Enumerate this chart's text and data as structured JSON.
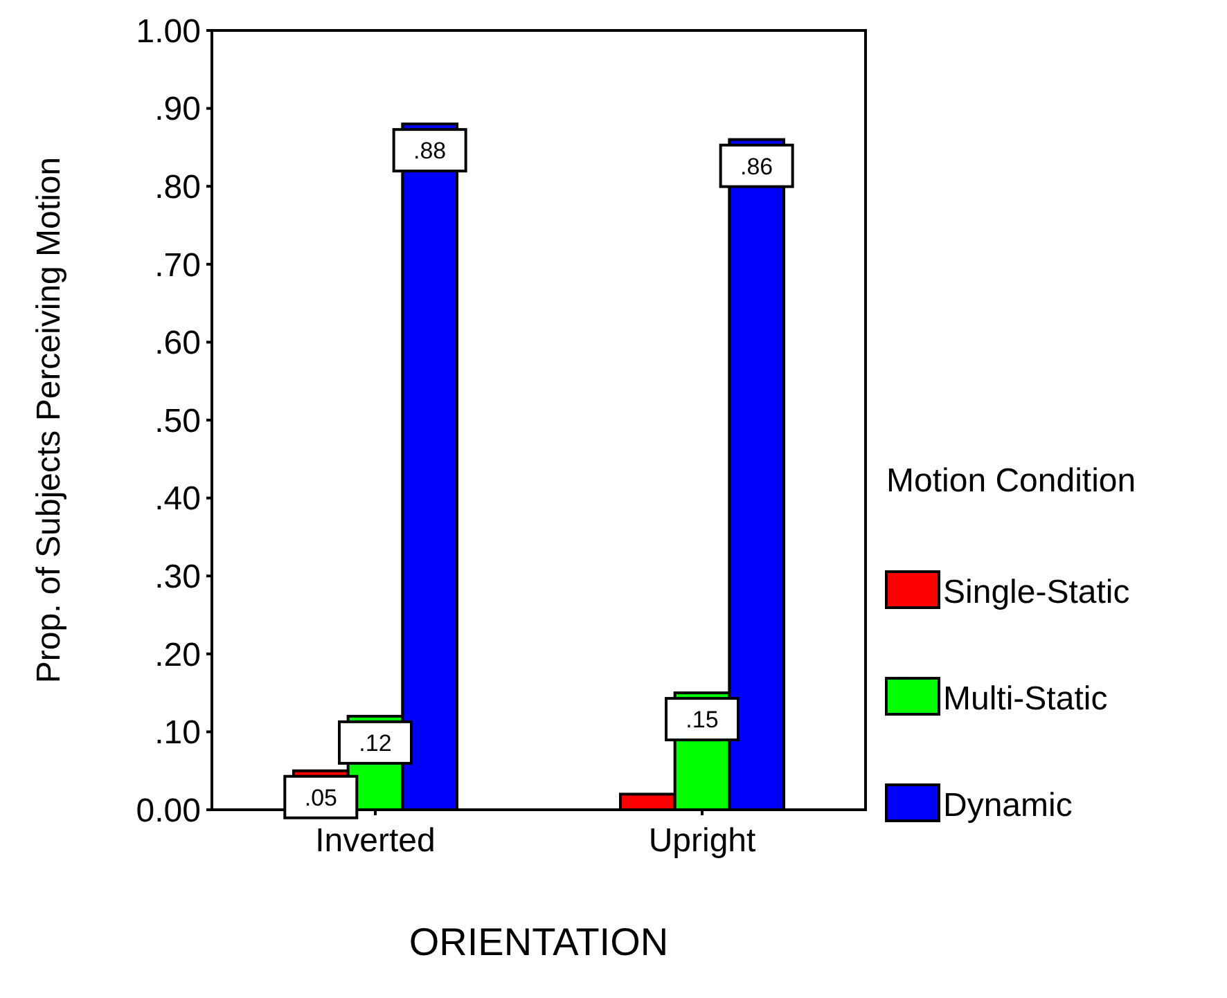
{
  "chart_data": {
    "type": "bar",
    "xlabel": "ORIENTATION",
    "ylabel": "Prop. of Subjects Perceiving Motion",
    "legend_title": "Motion Condition",
    "categories": [
      "Inverted",
      "Upright"
    ],
    "series": [
      {
        "name": "Single-Static",
        "color": "#ff0000",
        "values": [
          0.05,
          0.02
        ],
        "value_labels": [
          ".05",
          null
        ]
      },
      {
        "name": "Multi-Static",
        "color": "#00ff00",
        "values": [
          0.12,
          0.15
        ],
        "value_labels": [
          ".12",
          ".15"
        ]
      },
      {
        "name": "Dynamic",
        "color": "#0000ff",
        "values": [
          0.88,
          0.86
        ],
        "value_labels": [
          ".88",
          ".86"
        ]
      }
    ],
    "ylim": [
      0,
      1
    ],
    "yticks": [
      {
        "value": 0,
        "label": "0.00"
      },
      {
        "value": 0.1,
        "label": ".10"
      },
      {
        "value": 0.2,
        "label": ".20"
      },
      {
        "value": 0.3,
        "label": ".30"
      },
      {
        "value": 0.4,
        "label": ".40"
      },
      {
        "value": 0.5,
        "label": ".50"
      },
      {
        "value": 0.6,
        "label": ".60"
      },
      {
        "value": 0.7,
        "label": ".70"
      },
      {
        "value": 0.8,
        "label": ".80"
      },
      {
        "value": 0.9,
        "label": ".90"
      },
      {
        "value": 1,
        "label": "1.00"
      }
    ],
    "legend": "right",
    "grid": false
  }
}
